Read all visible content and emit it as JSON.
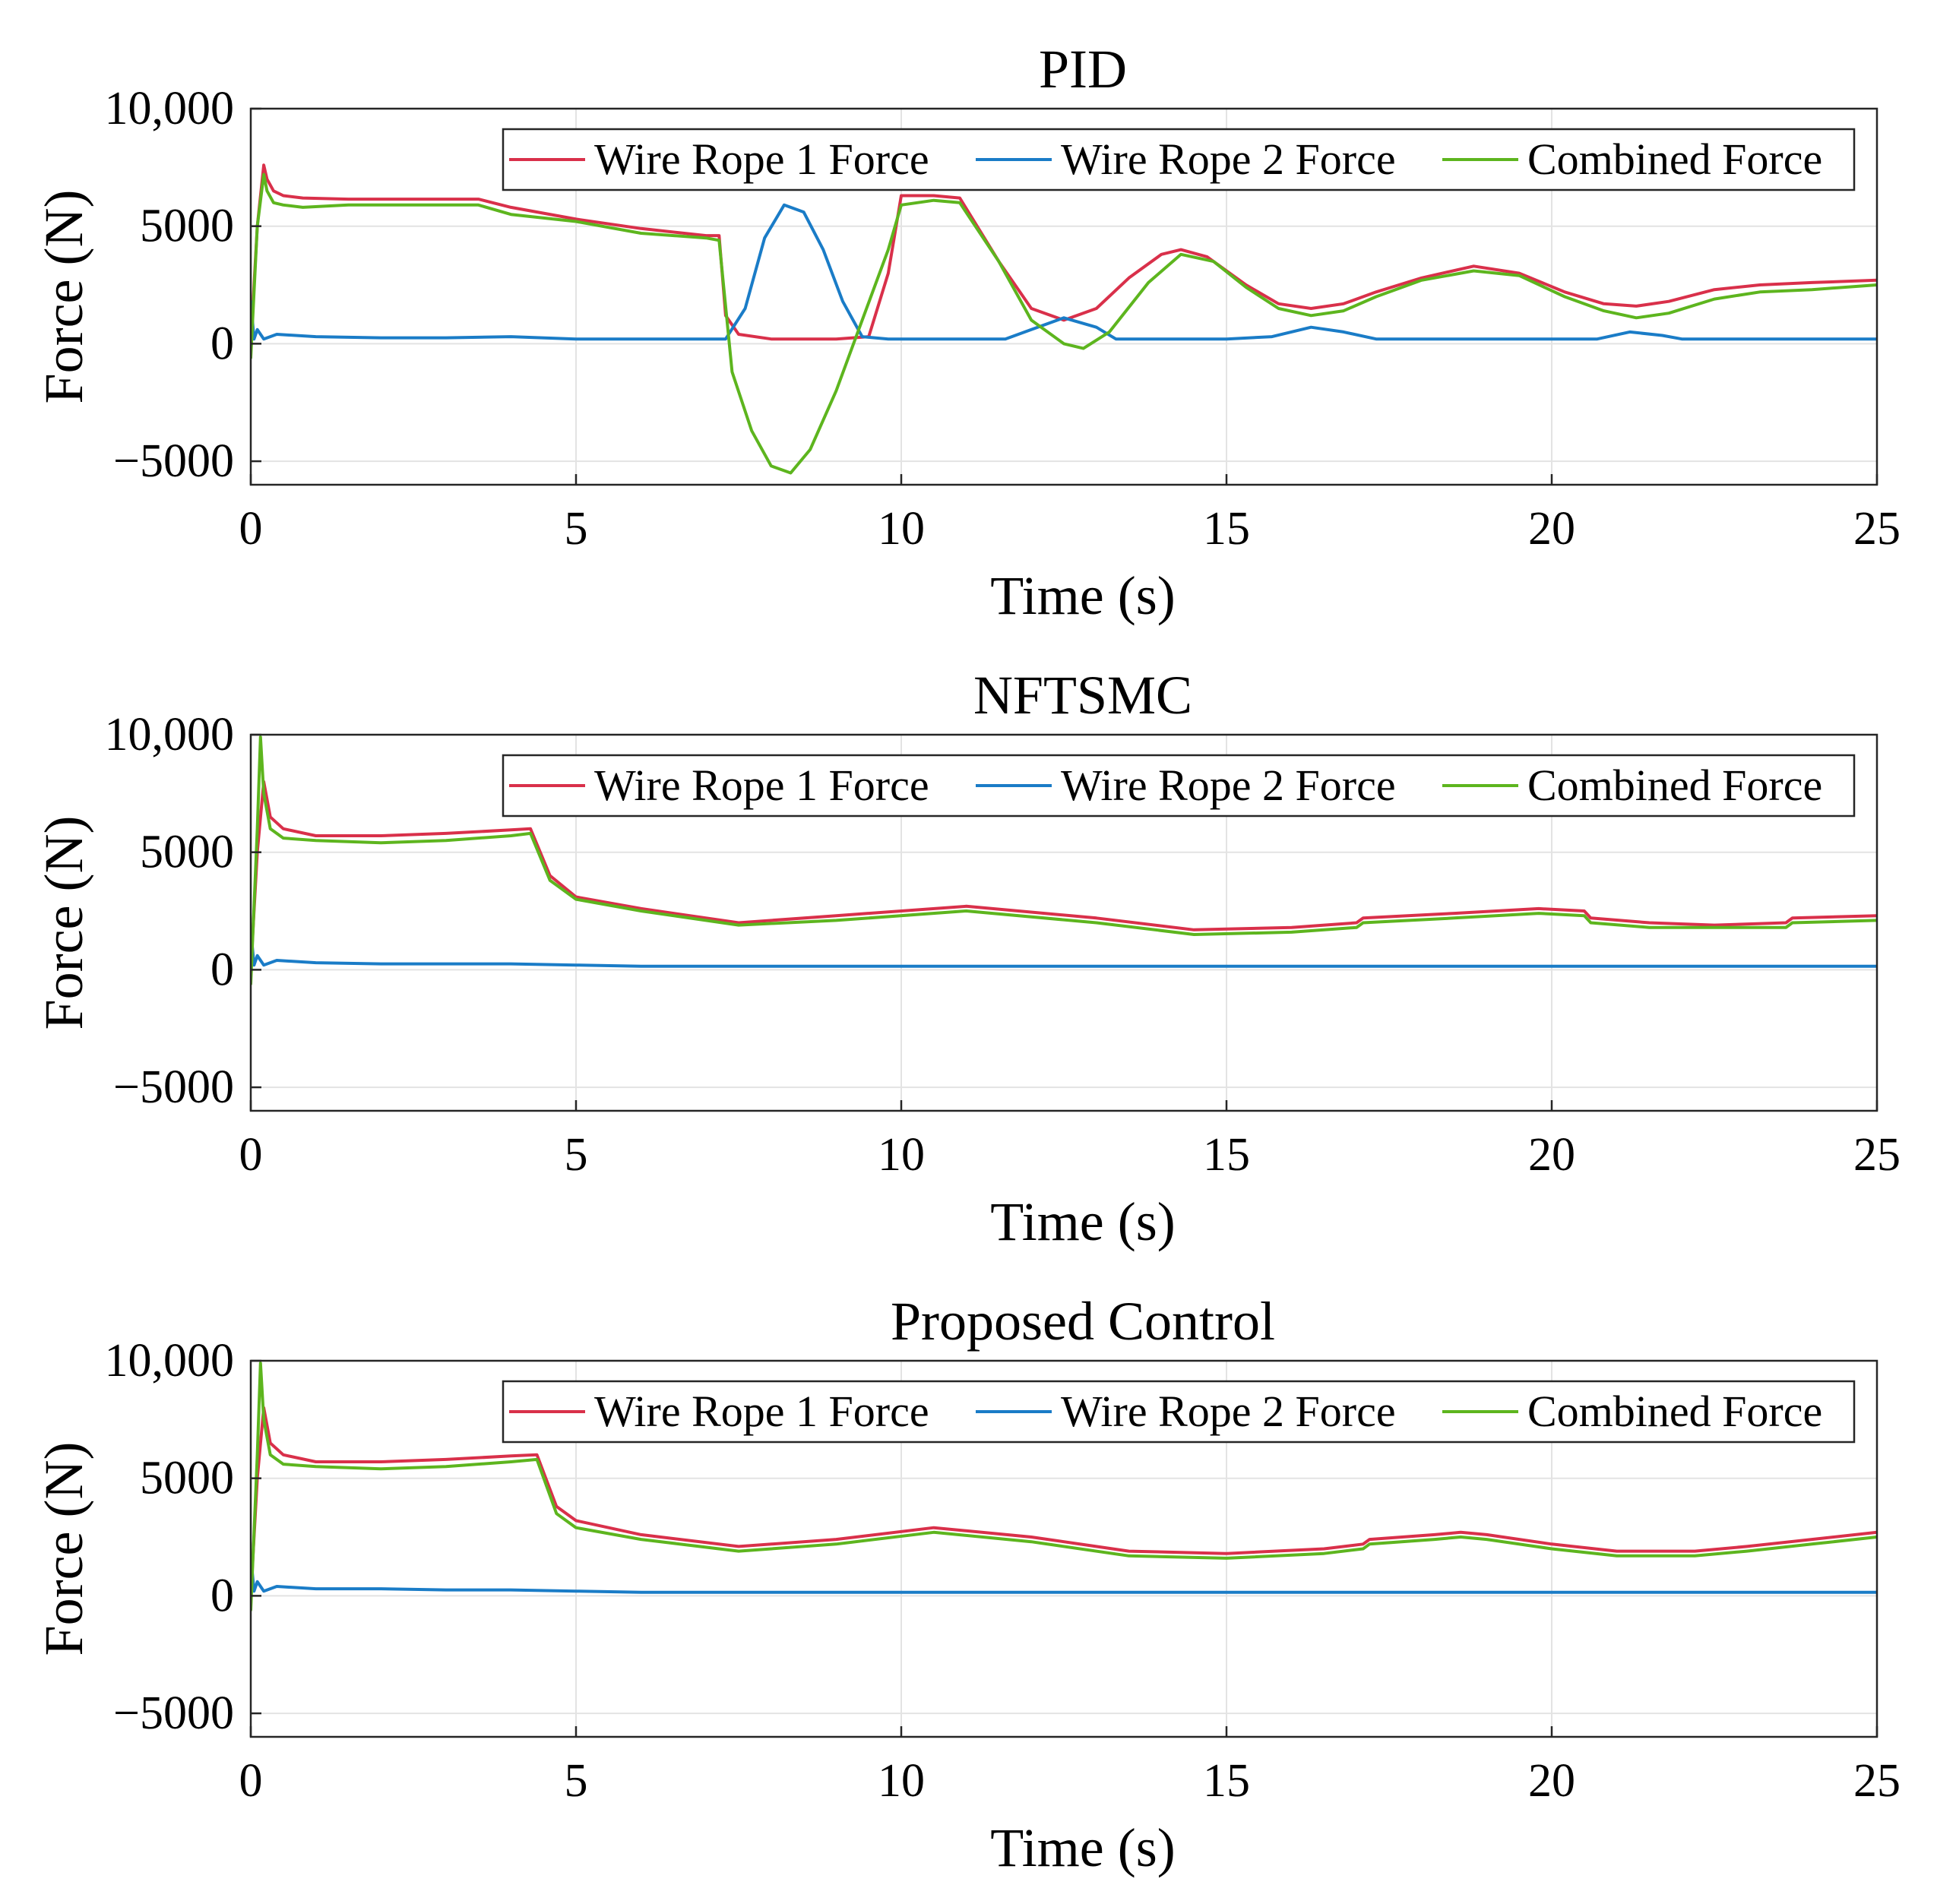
{
  "figure": {
    "legend_location": "top-right",
    "colors": {
      "wire_rope_1": "#d9304a",
      "wire_rope_2": "#1a7cc7",
      "combined": "#5db51e"
    }
  },
  "chart_data": [
    {
      "type": "line",
      "title": "PID",
      "xlabel": "Time (s)",
      "ylabel": "Force (N)",
      "xlim": [
        0,
        25
      ],
      "ylim": [
        -6000,
        10000
      ],
      "xticks": [
        0,
        5,
        10,
        15,
        20,
        25
      ],
      "xtick_labels": [
        "0",
        "5",
        "10",
        "15",
        "20",
        "25"
      ],
      "yticks": [
        -5000,
        0,
        5000,
        10000
      ],
      "ytick_labels": [
        "−5000",
        "0",
        "5000",
        "10,000"
      ],
      "grid": true,
      "series": [
        {
          "name": "Wire Rope 1 Force",
          "color": "#d9304a",
          "x": [
            0,
            0.1,
            0.2,
            0.25,
            0.35,
            0.5,
            0.8,
            1.5,
            2.5,
            3.5,
            4.0,
            5.0,
            6.0,
            7.0,
            7.2,
            7.3,
            7.5,
            8.0,
            8.5,
            9.0,
            9.5,
            9.8,
            10.0,
            10.5,
            10.9,
            11.5,
            12.0,
            12.5,
            13.0,
            13.5,
            14.0,
            14.3,
            14.7,
            15.3,
            15.8,
            16.3,
            16.8,
            17.3,
            18.0,
            18.8,
            19.5,
            20.2,
            20.8,
            21.3,
            21.8,
            22.5,
            23.2,
            24.0,
            25.0
          ],
          "y": [
            0,
            5000,
            7600,
            7000,
            6500,
            6300,
            6200,
            6150,
            6150,
            6150,
            5800,
            5300,
            4900,
            4600,
            4600,
            1200,
            400,
            200,
            200,
            200,
            300,
            3000,
            6300,
            6300,
            6200,
            3500,
            1500,
            1000,
            1500,
            2800,
            3800,
            4000,
            3700,
            2500,
            1700,
            1500,
            1700,
            2200,
            2800,
            3300,
            3000,
            2200,
            1700,
            1600,
            1800,
            2300,
            2500,
            2600,
            2700
          ]
        },
        {
          "name": "Wire Rope 2 Force",
          "color": "#1a7cc7",
          "x": [
            0,
            0.05,
            0.1,
            0.2,
            0.4,
            1.0,
            2.0,
            3.0,
            4.0,
            5.0,
            6.0,
            7.0,
            7.3,
            7.6,
            7.9,
            8.2,
            8.5,
            8.8,
            9.1,
            9.4,
            9.8,
            10.0,
            11.0,
            11.6,
            12.0,
            12.5,
            13.0,
            13.3,
            15.0,
            15.7,
            16.3,
            16.8,
            17.3,
            20.0,
            20.7,
            21.2,
            21.7,
            22.0,
            25.0
          ],
          "y": [
            1800,
            200,
            600,
            200,
            400,
            300,
            250,
            250,
            300,
            200,
            200,
            200,
            200,
            1500,
            4500,
            5900,
            5600,
            4000,
            1800,
            300,
            200,
            200,
            200,
            200,
            600,
            1100,
            700,
            200,
            200,
            300,
            700,
            500,
            200,
            200,
            200,
            500,
            350,
            200,
            200
          ]
        },
        {
          "name": "Combined Force",
          "color": "#5db51e",
          "x": [
            0,
            0.1,
            0.2,
            0.25,
            0.35,
            0.5,
            0.8,
            1.5,
            2.5,
            3.5,
            4.0,
            5.0,
            6.0,
            7.0,
            7.2,
            7.4,
            7.7,
            8.0,
            8.3,
            8.6,
            9.0,
            9.4,
            9.8,
            10.0,
            10.5,
            10.9,
            11.5,
            12.0,
            12.5,
            12.8,
            13.2,
            13.8,
            14.3,
            14.8,
            15.3,
            15.8,
            16.3,
            16.8,
            17.3,
            18.0,
            18.8,
            19.5,
            20.2,
            20.8,
            21.3,
            21.8,
            22.5,
            23.2,
            24.0,
            25.0
          ],
          "y": [
            -600,
            5000,
            7200,
            6500,
            6000,
            5900,
            5800,
            5900,
            5900,
            5900,
            5500,
            5200,
            4700,
            4500,
            4400,
            -1200,
            -3700,
            -5200,
            -5500,
            -4500,
            -2000,
            1000,
            4000,
            5900,
            6100,
            6000,
            3500,
            1000,
            0,
            -200,
            500,
            2600,
            3800,
            3500,
            2400,
            1500,
            1200,
            1400,
            2000,
            2700,
            3100,
            2900,
            2000,
            1400,
            1100,
            1300,
            1900,
            2200,
            2300,
            2500
          ]
        }
      ]
    },
    {
      "type": "line",
      "title": "NFTSMC",
      "xlabel": "Time (s)",
      "ylabel": "Force (N)",
      "xlim": [
        0,
        25
      ],
      "ylim": [
        -6000,
        10000
      ],
      "xticks": [
        0,
        5,
        10,
        15,
        20,
        25
      ],
      "xtick_labels": [
        "0",
        "5",
        "10",
        "15",
        "20",
        "25"
      ],
      "yticks": [
        -5000,
        0,
        5000,
        10000
      ],
      "ytick_labels": [
        "−5000",
        "0",
        "5000",
        "10,000"
      ],
      "grid": true,
      "series": [
        {
          "name": "Wire Rope 1 Force",
          "color": "#d9304a",
          "x": [
            0,
            0.1,
            0.2,
            0.3,
            0.5,
            1.0,
            2.0,
            3.0,
            4.0,
            4.3,
            4.6,
            5.0,
            6.0,
            7.5,
            9.0,
            11.0,
            13.0,
            14.5,
            16.0,
            17.0,
            17.1,
            18.5,
            19.8,
            20.5,
            20.6,
            21.5,
            22.5,
            23.6,
            23.7,
            25.0
          ],
          "y": [
            0,
            5000,
            8000,
            6500,
            6000,
            5700,
            5700,
            5800,
            5950,
            6000,
            4000,
            3100,
            2600,
            2000,
            2300,
            2700,
            2200,
            1700,
            1800,
            2000,
            2200,
            2400,
            2600,
            2500,
            2200,
            2000,
            1900,
            2000,
            2200,
            2300
          ]
        },
        {
          "name": "Wire Rope 2 Force",
          "color": "#1a7cc7",
          "x": [
            0,
            0.05,
            0.1,
            0.2,
            0.4,
            1.0,
            2.0,
            3.0,
            4.0,
            5.0,
            6.0,
            8.0,
            15.0,
            25.0
          ],
          "y": [
            1700,
            200,
            600,
            200,
            400,
            300,
            250,
            250,
            250,
            200,
            150,
            150,
            150,
            150
          ]
        },
        {
          "name": "Combined Force",
          "color": "#5db51e",
          "x": [
            0,
            0.1,
            0.15,
            0.2,
            0.3,
            0.5,
            1.0,
            2.0,
            3.0,
            4.0,
            4.3,
            4.6,
            5.0,
            6.0,
            7.5,
            9.0,
            11.0,
            13.0,
            14.5,
            16.0,
            17.0,
            17.1,
            18.5,
            19.8,
            20.5,
            20.6,
            21.5,
            22.5,
            23.6,
            23.7,
            25.0
          ],
          "y": [
            -600,
            6000,
            9900,
            7500,
            6000,
            5600,
            5500,
            5400,
            5500,
            5700,
            5800,
            3800,
            3000,
            2500,
            1900,
            2100,
            2500,
            2000,
            1500,
            1600,
            1800,
            2000,
            2200,
            2400,
            2300,
            2000,
            1800,
            1800,
            1800,
            2000,
            2100
          ]
        }
      ]
    },
    {
      "type": "line",
      "title": "Proposed Control",
      "xlabel": "Time (s)",
      "ylabel": "Force (N)",
      "xlim": [
        0,
        25
      ],
      "ylim": [
        -6000,
        10000
      ],
      "xticks": [
        0,
        5,
        10,
        15,
        20,
        25
      ],
      "xtick_labels": [
        "0",
        "5",
        "10",
        "15",
        "20",
        "25"
      ],
      "yticks": [
        -5000,
        0,
        5000,
        10000
      ],
      "ytick_labels": [
        "−5000",
        "0",
        "5000",
        "10,000"
      ],
      "grid": true,
      "series": [
        {
          "name": "Wire Rope 1 Force",
          "color": "#d9304a",
          "x": [
            0,
            0.1,
            0.2,
            0.3,
            0.5,
            1.0,
            2.0,
            3.0,
            4.0,
            4.4,
            4.7,
            5.0,
            6.0,
            7.5,
            9.0,
            10.5,
            12.0,
            13.5,
            15.0,
            16.5,
            17.1,
            17.2,
            18.2,
            18.6,
            19.0,
            20.0,
            21.0,
            21.8,
            22.2,
            23.0,
            24.0,
            25.0
          ],
          "y": [
            0,
            5000,
            8000,
            6500,
            6000,
            5700,
            5700,
            5800,
            5950,
            6000,
            3800,
            3200,
            2600,
            2100,
            2400,
            2900,
            2500,
            1900,
            1800,
            2000,
            2200,
            2400,
            2600,
            2700,
            2600,
            2200,
            1900,
            1900,
            1900,
            2100,
            2400,
            2700
          ]
        },
        {
          "name": "Wire Rope 2 Force",
          "color": "#1a7cc7",
          "x": [
            0,
            0.05,
            0.1,
            0.2,
            0.4,
            1.0,
            2.0,
            3.0,
            4.0,
            5.0,
            6.0,
            8.0,
            15.0,
            25.0
          ],
          "y": [
            1700,
            200,
            600,
            200,
            400,
            300,
            300,
            250,
            250,
            200,
            150,
            150,
            150,
            150
          ]
        },
        {
          "name": "Combined Force",
          "color": "#5db51e",
          "x": [
            0,
            0.1,
            0.15,
            0.2,
            0.3,
            0.5,
            1.0,
            2.0,
            3.0,
            4.0,
            4.4,
            4.7,
            5.0,
            6.0,
            7.5,
            9.0,
            10.5,
            12.0,
            13.5,
            15.0,
            16.5,
            17.1,
            17.2,
            18.2,
            18.6,
            19.0,
            20.0,
            21.0,
            21.8,
            22.2,
            23.0,
            24.0,
            25.0
          ],
          "y": [
            -600,
            6000,
            9900,
            7500,
            6000,
            5600,
            5500,
            5400,
            5500,
            5700,
            5800,
            3500,
            2900,
            2400,
            1900,
            2200,
            2700,
            2300,
            1700,
            1600,
            1800,
            2000,
            2200,
            2400,
            2500,
            2400,
            2000,
            1700,
            1700,
            1700,
            1900,
            2200,
            2500
          ]
        }
      ]
    }
  ]
}
